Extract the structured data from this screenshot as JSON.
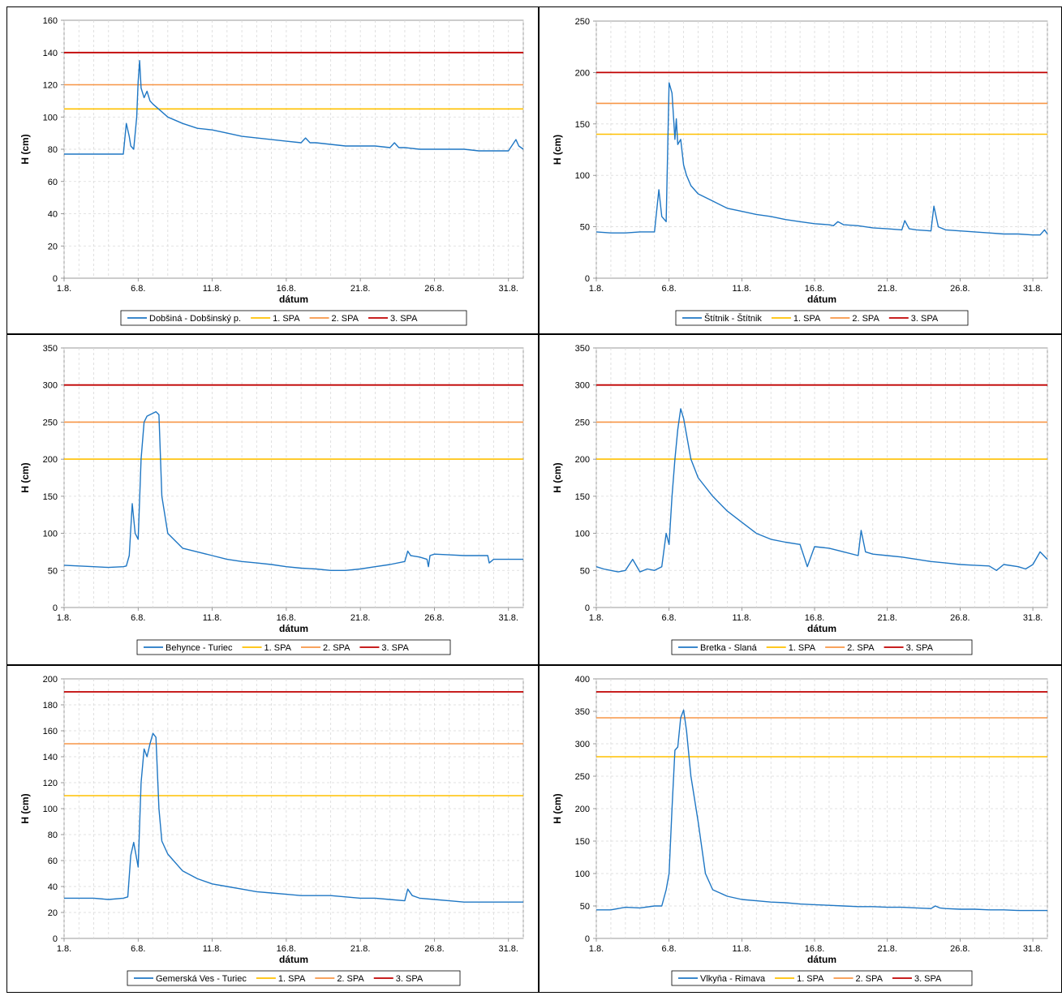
{
  "colors": {
    "series": "#1f77c4",
    "spa1": "#ffc000",
    "spa2": "#f79646",
    "spa3": "#c00000",
    "grid": "#d9d9d9",
    "axis": "#808080"
  },
  "chart_data": [
    {
      "type": "line",
      "ylabel": "H (cm)",
      "xlabel": "dátum",
      "x_ticks": [
        "1.8.",
        "6.8.",
        "11.8.",
        "16.8.",
        "21.8.",
        "26.8.",
        "31.8."
      ],
      "xlim": [
        1,
        32
      ],
      "ylim": [
        0,
        160
      ],
      "y_ticks": [
        "0",
        "20",
        "40",
        "60",
        "80",
        "100",
        "120",
        "140",
        "160"
      ],
      "grid": true,
      "legend_position": "bottom",
      "series": [
        {
          "name": "Dobšiná - Dobšinský p.",
          "x": [
            1,
            2,
            3,
            4,
            5,
            5.2,
            5.4,
            5.5,
            5.7,
            5.9,
            6,
            6.1,
            6.2,
            6.4,
            6.6,
            6.8,
            7,
            7.5,
            8,
            9,
            10,
            11,
            12,
            13,
            14,
            15,
            16,
            17,
            17.3,
            17.6,
            18,
            19,
            20,
            21,
            22,
            23,
            23.3,
            23.6,
            24,
            25,
            26,
            27,
            28,
            29,
            30,
            31,
            31.5,
            31.7,
            32
          ],
          "y": [
            77,
            77,
            77,
            77,
            77,
            96,
            88,
            82,
            80,
            100,
            122,
            135,
            118,
            112,
            116,
            110,
            108,
            104,
            100,
            96,
            93,
            92,
            90,
            88,
            87,
            86,
            85,
            84,
            87,
            84,
            84,
            83,
            82,
            82,
            82,
            81,
            84,
            81,
            81,
            80,
            80,
            80,
            80,
            79,
            79,
            79,
            86,
            82,
            80
          ]
        },
        {
          "name": "1. SPA",
          "x": [
            1,
            32
          ],
          "y": [
            105,
            105
          ]
        },
        {
          "name": "2. SPA",
          "x": [
            1,
            32
          ],
          "y": [
            120,
            120
          ]
        },
        {
          "name": "3. SPA",
          "x": [
            1,
            32
          ],
          "y": [
            140,
            140
          ]
        }
      ]
    },
    {
      "type": "line",
      "ylabel": "H (cm)",
      "xlabel": "dátum",
      "x_ticks": [
        "1.8.",
        "6.8.",
        "11.8.",
        "16.8.",
        "21.8.",
        "26.8.",
        "31.8."
      ],
      "xlim": [
        1,
        32
      ],
      "ylim": [
        0,
        250
      ],
      "y_ticks": [
        "0",
        "50",
        "100",
        "150",
        "200",
        "250"
      ],
      "grid": true,
      "legend_position": "bottom",
      "series": [
        {
          "name": "Štítnik - Štítnik",
          "x": [
            1,
            2,
            3,
            4,
            5,
            5.3,
            5.5,
            5.8,
            6,
            6.2,
            6.4,
            6.5,
            6.6,
            6.8,
            7,
            7.2,
            7.5,
            8,
            9,
            10,
            11,
            12,
            13,
            14,
            15,
            16,
            17,
            17.3,
            17.6,
            18,
            19,
            20,
            21,
            22,
            22.2,
            22.5,
            23,
            24,
            24.2,
            24.5,
            25,
            26,
            27,
            28,
            29,
            30,
            31,
            31.5,
            31.8,
            32
          ],
          "y": [
            45,
            44,
            44,
            45,
            45,
            86,
            60,
            55,
            190,
            180,
            135,
            155,
            130,
            135,
            110,
            100,
            90,
            82,
            75,
            68,
            65,
            62,
            60,
            57,
            55,
            53,
            52,
            51,
            55,
            52,
            51,
            49,
            48,
            47,
            56,
            48,
            47,
            46,
            70,
            50,
            47,
            46,
            45,
            44,
            43,
            43,
            42,
            42,
            47,
            43
          ]
        },
        {
          "name": "1. SPA",
          "x": [
            1,
            32
          ],
          "y": [
            140,
            140
          ]
        },
        {
          "name": "2. SPA",
          "x": [
            1,
            32
          ],
          "y": [
            170,
            170
          ]
        },
        {
          "name": "3. SPA",
          "x": [
            1,
            32
          ],
          "y": [
            200,
            200
          ]
        }
      ]
    },
    {
      "type": "line",
      "ylabel": "H (cm)",
      "xlabel": "dátum",
      "x_ticks": [
        "1.8.",
        "6.8.",
        "11.8.",
        "16.8.",
        "21.8.",
        "26.8.",
        "31.8."
      ],
      "xlim": [
        1,
        32
      ],
      "ylim": [
        0,
        350
      ],
      "y_ticks": [
        "0",
        "50",
        "100",
        "150",
        "200",
        "250",
        "300",
        "350"
      ],
      "grid": true,
      "legend_position": "bottom",
      "series": [
        {
          "name": "Behynce - Turiec",
          "x": [
            1,
            2,
            3,
            4,
            5,
            5.2,
            5.4,
            5.6,
            5.8,
            6,
            6.2,
            6.4,
            6.6,
            6.8,
            7,
            7.2,
            7.4,
            7.6,
            8,
            9,
            10,
            11,
            12,
            13,
            14,
            15,
            16,
            17,
            18,
            19,
            20,
            21,
            22,
            23,
            24,
            24.2,
            24.4,
            25,
            25.5,
            25.6,
            25.7,
            26,
            27,
            28,
            29,
            29.6,
            29.7,
            30,
            31,
            32
          ],
          "y": [
            57,
            56,
            55,
            54,
            55,
            56,
            70,
            140,
            100,
            92,
            200,
            250,
            258,
            260,
            262,
            264,
            260,
            150,
            100,
            80,
            75,
            70,
            65,
            62,
            60,
            58,
            55,
            53,
            52,
            50,
            50,
            52,
            55,
            58,
            62,
            76,
            70,
            68,
            65,
            55,
            70,
            72,
            71,
            70,
            70,
            70,
            60,
            65,
            65,
            65
          ]
        },
        {
          "name": "1. SPA",
          "x": [
            1,
            32
          ],
          "y": [
            200,
            200
          ]
        },
        {
          "name": "2. SPA",
          "x": [
            1,
            32
          ],
          "y": [
            250,
            250
          ]
        },
        {
          "name": "3. SPA",
          "x": [
            1,
            32
          ],
          "y": [
            300,
            300
          ]
        }
      ]
    },
    {
      "type": "line",
      "ylabel": "H (cm)",
      "xlabel": "dátum",
      "x_ticks": [
        "1.8.",
        "6.8.",
        "11.8.",
        "16.8.",
        "21.8.",
        "26.8.",
        "31.8."
      ],
      "xlim": [
        1,
        32
      ],
      "ylim": [
        0,
        350
      ],
      "y_ticks": [
        "0",
        "50",
        "100",
        "150",
        "200",
        "250",
        "300",
        "350"
      ],
      "grid": true,
      "legend_position": "bottom",
      "series": [
        {
          "name": "Bretka - Slaná",
          "x": [
            1,
            1.5,
            2,
            2.5,
            3,
            3.5,
            4,
            4.5,
            5,
            5.5,
            5.8,
            6,
            6.2,
            6.4,
            6.6,
            6.8,
            7,
            7.5,
            8,
            9,
            10,
            11,
            12,
            13,
            14,
            15,
            15.5,
            16,
            17,
            18,
            19,
            19.2,
            19.5,
            20,
            21,
            22,
            23,
            24,
            25,
            26,
            27,
            28,
            28.5,
            29,
            30,
            30.5,
            31,
            31.5,
            32
          ],
          "y": [
            55,
            52,
            50,
            48,
            50,
            65,
            48,
            52,
            50,
            55,
            100,
            85,
            150,
            200,
            240,
            268,
            255,
            200,
            175,
            150,
            130,
            115,
            100,
            92,
            88,
            85,
            55,
            82,
            80,
            75,
            70,
            104,
            75,
            72,
            70,
            68,
            65,
            62,
            60,
            58,
            57,
            56,
            50,
            58,
            55,
            52,
            58,
            75,
            65
          ]
        },
        {
          "name": "1. SPA",
          "x": [
            1,
            32
          ],
          "y": [
            200,
            200
          ]
        },
        {
          "name": "2. SPA",
          "x": [
            1,
            32
          ],
          "y": [
            250,
            250
          ]
        },
        {
          "name": "3. SPA",
          "x": [
            1,
            32
          ],
          "y": [
            300,
            300
          ]
        }
      ]
    },
    {
      "type": "line",
      "ylabel": "H (cm)",
      "xlabel": "dátum",
      "x_ticks": [
        "1.8.",
        "6.8.",
        "11.8.",
        "16.8.",
        "21.8.",
        "26.8.",
        "31.8."
      ],
      "xlim": [
        1,
        32
      ],
      "ylim": [
        0,
        200
      ],
      "y_ticks": [
        "0",
        "20",
        "40",
        "60",
        "80",
        "100",
        "120",
        "140",
        "160",
        "180",
        "200"
      ],
      "grid": true,
      "legend_position": "bottom",
      "series": [
        {
          "name": "Gemerská Ves - Turiec",
          "x": [
            1,
            2,
            3,
            4,
            5,
            5.3,
            5.5,
            5.7,
            6,
            6.2,
            6.4,
            6.6,
            6.8,
            7,
            7.2,
            7.4,
            7.6,
            8,
            9,
            10,
            11,
            12,
            13,
            14,
            15,
            16,
            17,
            18,
            19,
            20,
            21,
            22,
            23,
            24,
            24.2,
            24.5,
            25,
            26,
            27,
            28,
            29,
            30,
            31,
            32
          ],
          "y": [
            31,
            31,
            31,
            30,
            31,
            32,
            64,
            74,
            55,
            120,
            146,
            140,
            150,
            158,
            155,
            100,
            75,
            65,
            52,
            46,
            42,
            40,
            38,
            36,
            35,
            34,
            33,
            33,
            33,
            32,
            31,
            31,
            30,
            29,
            38,
            33,
            31,
            30,
            29,
            28,
            28,
            28,
            28,
            28
          ]
        },
        {
          "name": "1. SPA",
          "x": [
            1,
            32
          ],
          "y": [
            110,
            110
          ]
        },
        {
          "name": "2. SPA",
          "x": [
            1,
            32
          ],
          "y": [
            150,
            150
          ]
        },
        {
          "name": "3. SPA",
          "x": [
            1,
            32
          ],
          "y": [
            190,
            190
          ]
        }
      ]
    },
    {
      "type": "line",
      "ylabel": "H (cm)",
      "xlabel": "dátum",
      "x_ticks": [
        "1.8.",
        "6.8.",
        "11.8.",
        "16.8.",
        "21.8.",
        "26.8.",
        "31.8."
      ],
      "xlim": [
        1,
        32
      ],
      "ylim": [
        0,
        400
      ],
      "y_ticks": [
        "0",
        "50",
        "100",
        "150",
        "200",
        "250",
        "300",
        "350",
        "400"
      ],
      "grid": true,
      "legend_position": "bottom",
      "series": [
        {
          "name": "Vlkyňa - Rimava",
          "x": [
            1,
            2,
            3,
            4,
            5,
            5.5,
            5.8,
            6,
            6.2,
            6.4,
            6.6,
            6.8,
            7,
            7.2,
            7.5,
            8,
            8.5,
            9,
            9.5,
            10,
            11,
            12,
            13,
            14,
            15,
            16,
            17,
            18,
            19,
            20,
            21,
            22,
            23,
            24,
            24.3,
            24.6,
            25,
            26,
            27,
            28,
            29,
            30,
            31,
            32
          ],
          "y": [
            44,
            44,
            48,
            47,
            50,
            50,
            75,
            100,
            200,
            290,
            295,
            340,
            352,
            320,
            250,
            180,
            100,
            75,
            70,
            65,
            60,
            58,
            56,
            55,
            53,
            52,
            51,
            50,
            49,
            49,
            48,
            48,
            47,
            46,
            50,
            47,
            46,
            45,
            45,
            44,
            44,
            43,
            43,
            43
          ]
        },
        {
          "name": "1. SPA",
          "x": [
            1,
            32
          ],
          "y": [
            280,
            280
          ]
        },
        {
          "name": "2. SPA",
          "x": [
            1,
            32
          ],
          "y": [
            340,
            340
          ]
        },
        {
          "name": "3. SPA",
          "x": [
            1,
            32
          ],
          "y": [
            380,
            380
          ]
        }
      ]
    }
  ]
}
